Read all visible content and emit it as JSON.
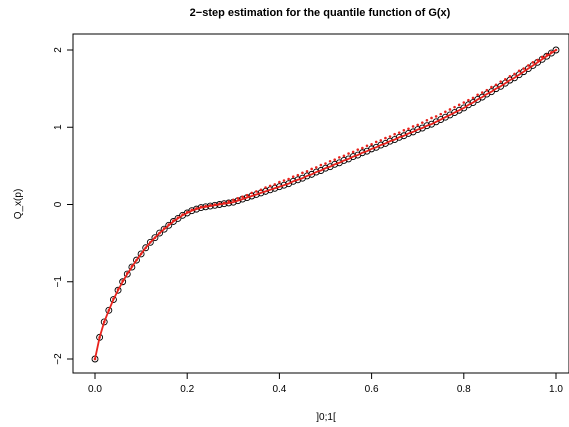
{
  "chart_data": {
    "type": "scatter",
    "title": "2−step estimation for the quantile function of G(x)",
    "xlabel": "]0;1[",
    "ylabel": "Q_x(p)",
    "xlim": [
      0.0,
      1.0
    ],
    "ylim": [
      -2.0,
      2.0
    ],
    "x_ticks": [
      0.0,
      0.2,
      0.4,
      0.6,
      0.8,
      1.0
    ],
    "x_tick_labels": [
      "0.0",
      "0.2",
      "0.4",
      "0.6",
      "0.8",
      "1.0"
    ],
    "y_ticks": [
      -2,
      -1,
      0,
      1,
      2
    ],
    "y_tick_labels": [
      "−2",
      "−1",
      "0",
      "1",
      "2"
    ],
    "grid": false,
    "legend": "none",
    "x": [
      0.0,
      0.01,
      0.02,
      0.03,
      0.04,
      0.05,
      0.06,
      0.07,
      0.08,
      0.09,
      0.1,
      0.11,
      0.12,
      0.13,
      0.14,
      0.15,
      0.16,
      0.17,
      0.18,
      0.19,
      0.2,
      0.21,
      0.22,
      0.23,
      0.24,
      0.25,
      0.26,
      0.27,
      0.28,
      0.29,
      0.3,
      0.31,
      0.32,
      0.33,
      0.34,
      0.35,
      0.36,
      0.37,
      0.38,
      0.39,
      0.4,
      0.41,
      0.42,
      0.43,
      0.44,
      0.45,
      0.46,
      0.47,
      0.48,
      0.49,
      0.5,
      0.51,
      0.52,
      0.53,
      0.54,
      0.55,
      0.56,
      0.57,
      0.58,
      0.59,
      0.6,
      0.61,
      0.62,
      0.63,
      0.64,
      0.65,
      0.66,
      0.67,
      0.68,
      0.69,
      0.7,
      0.71,
      0.72,
      0.73,
      0.74,
      0.75,
      0.76,
      0.77,
      0.78,
      0.79,
      0.8,
      0.81,
      0.82,
      0.83,
      0.84,
      0.85,
      0.86,
      0.87,
      0.88,
      0.89,
      0.9,
      0.91,
      0.92,
      0.93,
      0.94,
      0.95,
      0.96,
      0.97,
      0.98,
      0.99,
      1.0
    ],
    "series": [
      {
        "kind": "points",
        "marker": "open-circle",
        "color": "#000000",
        "values": [
          -2.0,
          -1.72,
          -1.52,
          -1.37,
          -1.23,
          -1.11,
          -1.0,
          -0.9,
          -0.81,
          -0.72,
          -0.64,
          -0.56,
          -0.49,
          -0.43,
          -0.37,
          -0.32,
          -0.27,
          -0.22,
          -0.18,
          -0.14,
          -0.11,
          -0.08,
          -0.06,
          -0.04,
          -0.03,
          -0.02,
          -0.01,
          0.0,
          0.01,
          0.02,
          0.03,
          0.05,
          0.07,
          0.09,
          0.11,
          0.13,
          0.15,
          0.17,
          0.19,
          0.21,
          0.23,
          0.25,
          0.27,
          0.3,
          0.32,
          0.34,
          0.37,
          0.39,
          0.42,
          0.44,
          0.47,
          0.49,
          0.52,
          0.54,
          0.57,
          0.59,
          0.62,
          0.64,
          0.67,
          0.69,
          0.72,
          0.74,
          0.77,
          0.79,
          0.82,
          0.84,
          0.87,
          0.89,
          0.92,
          0.94,
          0.97,
          0.99,
          1.02,
          1.04,
          1.07,
          1.1,
          1.13,
          1.16,
          1.19,
          1.22,
          1.25,
          1.29,
          1.32,
          1.36,
          1.39,
          1.43,
          1.46,
          1.5,
          1.53,
          1.57,
          1.61,
          1.64,
          1.68,
          1.72,
          1.76,
          1.8,
          1.84,
          1.88,
          1.92,
          1.96,
          2.0
        ]
      },
      {
        "kind": "points",
        "marker": "small-dot",
        "color": "#e8221c",
        "values": [
          -2.0,
          -1.72,
          -1.52,
          -1.37,
          -1.22,
          -1.1,
          -0.99,
          -0.89,
          -0.8,
          -0.72,
          -0.64,
          -0.56,
          -0.49,
          -0.43,
          -0.37,
          -0.31,
          -0.26,
          -0.21,
          -0.17,
          -0.13,
          -0.1,
          -0.07,
          -0.05,
          -0.03,
          -0.02,
          -0.01,
          0.0,
          0.01,
          0.02,
          0.04,
          0.06,
          0.08,
          0.1,
          0.12,
          0.15,
          0.17,
          0.19,
          0.22,
          0.24,
          0.26,
          0.29,
          0.31,
          0.33,
          0.36,
          0.38,
          0.41,
          0.43,
          0.46,
          0.48,
          0.51,
          0.53,
          0.56,
          0.58,
          0.61,
          0.63,
          0.66,
          0.68,
          0.71,
          0.73,
          0.76,
          0.78,
          0.81,
          0.83,
          0.86,
          0.88,
          0.91,
          0.93,
          0.96,
          0.98,
          1.01,
          1.03,
          1.06,
          1.09,
          1.12,
          1.14,
          1.17,
          1.2,
          1.23,
          1.26,
          1.29,
          1.32,
          1.35,
          1.38,
          1.42,
          1.45,
          1.48,
          1.52,
          1.55,
          1.59,
          1.62,
          1.66,
          1.69,
          1.73,
          1.76,
          1.8,
          1.84,
          1.87,
          1.91,
          1.94,
          1.97,
          2.0
        ]
      },
      {
        "kind": "line",
        "color": "#e8221c",
        "values": [
          -2.0,
          -1.72,
          -1.52,
          -1.37,
          -1.23,
          -1.11,
          -1.0,
          -0.9,
          -0.81,
          -0.72,
          -0.64,
          -0.56,
          -0.49,
          -0.43,
          -0.37,
          -0.32,
          -0.27,
          -0.22,
          -0.18,
          -0.14,
          -0.11,
          -0.08,
          -0.06,
          -0.04,
          -0.03,
          -0.02,
          -0.01,
          0.0,
          0.01,
          0.02,
          0.03,
          0.05,
          0.07,
          0.09,
          0.11,
          0.13,
          0.15,
          0.17,
          0.19,
          0.21,
          0.23,
          0.25,
          0.27,
          0.3,
          0.32,
          0.34,
          0.37,
          0.39,
          0.42,
          0.44,
          0.47,
          0.49,
          0.52,
          0.54,
          0.57,
          0.59,
          0.62,
          0.64,
          0.67,
          0.69,
          0.72,
          0.74,
          0.77,
          0.79,
          0.82,
          0.84,
          0.87,
          0.89,
          0.92,
          0.94,
          0.97,
          0.99,
          1.02,
          1.04,
          1.07,
          1.1,
          1.13,
          1.16,
          1.19,
          1.22,
          1.25,
          1.29,
          1.32,
          1.36,
          1.39,
          1.43,
          1.46,
          1.5,
          1.53,
          1.57,
          1.61,
          1.64,
          1.68,
          1.72,
          1.76,
          1.8,
          1.84,
          1.88,
          1.92,
          1.96,
          2.0
        ]
      }
    ]
  }
}
